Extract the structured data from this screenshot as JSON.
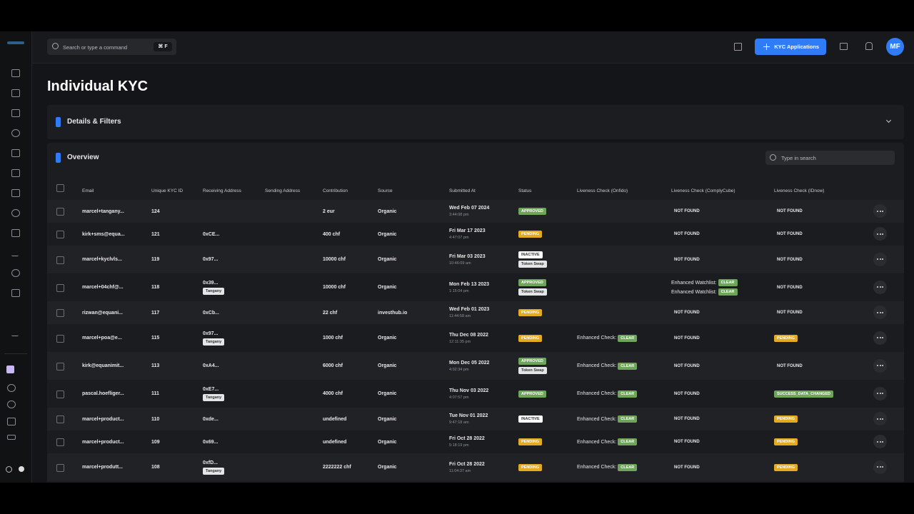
{
  "topbar": {
    "search_placeholder": "Search or type a command",
    "shortcut": "⌘ F",
    "button": "KYC Applications",
    "avatar": "MF"
  },
  "page": {
    "title": "Individual KYC",
    "details_panel": "Details & Filters",
    "overview_panel": "Overview",
    "table_search": "Type in search"
  },
  "table": {
    "headers": [
      "Email",
      "Unique KYC ID",
      "Receiving Address",
      "Sending Address",
      "Contribution",
      "Source",
      "Submitted At",
      "Status",
      "Liveness Check (Onfido)",
      "Liveness Check (ComplyCube)",
      "Liveness Check (IDnow)"
    ],
    "rows": [
      {
        "email": "marcel+tangany...",
        "kyc_id": "124",
        "contribution": "2 eur",
        "source": "Organic",
        "date": "Wed Feb 07 2024",
        "time": "3:44:08 pm",
        "status": [
          {
            "text": "APPROVED",
            "tone": "green"
          }
        ],
        "complycube": [
          {
            "text": "NOT FOUND"
          }
        ],
        "idnow": [
          {
            "text": "NOT FOUND"
          }
        ]
      },
      {
        "email": "kirk+sms@equa...",
        "kyc_id": "121",
        "receiving": "0xCE...",
        "contribution": "400 chf",
        "source": "Organic",
        "date": "Fri Mar 17 2023",
        "time": "4:47:07 pm",
        "status": [
          {
            "text": "PENDING",
            "tone": "yellow"
          }
        ],
        "complycube": [
          {
            "text": "NOT FOUND"
          }
        ],
        "idnow": [
          {
            "text": "NOT FOUND"
          }
        ]
      },
      {
        "email": "marcel+kyclvls...",
        "kyc_id": "119",
        "receiving": "0x97...",
        "contribution": "10000 chf",
        "source": "Organic",
        "date": "Fri Mar 03 2023",
        "time": "10:46:09 am",
        "status": [
          {
            "text": "INACTIVE",
            "tone": "white"
          },
          {
            "text": "Token Swap",
            "tone": "grey"
          }
        ],
        "complycube": [
          {
            "text": "NOT FOUND"
          }
        ],
        "idnow": [
          {
            "text": "NOT FOUND"
          }
        ]
      },
      {
        "email": "marcel+04chf@...",
        "kyc_id": "118",
        "receiving": "0x39...",
        "receiving_tag": "Tangany",
        "contribution": "10000 chf",
        "source": "Organic",
        "date": "Mon Feb 13 2023",
        "time": "1:15:04 pm",
        "status": [
          {
            "text": "APPROVED",
            "tone": "green"
          },
          {
            "text": "Token Swap",
            "tone": "grey"
          }
        ],
        "complycube": [
          {
            "label": "Enhanced Watchlist:",
            "badge": "CLEAR"
          },
          {
            "label": "Enhanced Watchlist:",
            "badge": "CLEAR"
          }
        ],
        "idnow": [
          {
            "text": "NOT FOUND"
          }
        ]
      },
      {
        "email": "rizwan@equani...",
        "kyc_id": "117",
        "receiving": "0xCb...",
        "contribution": "22 chf",
        "source": "investhub.io",
        "date": "Wed Feb 01 2023",
        "time": "11:44:58 am",
        "status": [
          {
            "text": "PENDING",
            "tone": "yellow"
          }
        ],
        "complycube": [
          {
            "text": "NOT FOUND"
          }
        ],
        "idnow": [
          {
            "text": "NOT FOUND"
          }
        ]
      },
      {
        "email": "marcel+poa@e...",
        "kyc_id": "115",
        "receiving": "0x97...",
        "receiving_tag": "Tangany",
        "contribution": "1000 chf",
        "source": "Organic",
        "date": "Thu Dec 08 2022",
        "time": "12:11:35 pm",
        "status": [
          {
            "text": "PENDING",
            "tone": "yellow"
          }
        ],
        "onfido": [
          {
            "label": "Enhanced Check:",
            "badge": "CLEAR"
          }
        ],
        "complycube": [
          {
            "text": "NOT FOUND"
          }
        ],
        "idnow": [
          {
            "badge": "PENDING",
            "tone": "yellow"
          }
        ]
      },
      {
        "email": "kirk@equanimit...",
        "kyc_id": "113",
        "receiving": "0xA4...",
        "contribution": "6000 chf",
        "source": "Organic",
        "date": "Mon Dec 05 2022",
        "time": "4:02:34 pm",
        "status": [
          {
            "text": "APPROVED",
            "tone": "green"
          },
          {
            "text": "Token Swap",
            "tone": "grey"
          }
        ],
        "onfido": [
          {
            "label": "Enhanced Check:",
            "badge": "CLEAR"
          }
        ],
        "complycube": [
          {
            "text": "NOT FOUND"
          }
        ],
        "idnow": [
          {
            "text": "NOT FOUND"
          }
        ]
      },
      {
        "email": "pascal.hoefliger...",
        "kyc_id": "111",
        "receiving": "0xE7...",
        "receiving_tag": "Tangany",
        "contribution": "4000 chf",
        "source": "Organic",
        "date": "Thu Nov 03 2022",
        "time": "4:07:57 pm",
        "status": [
          {
            "text": "APPROVED",
            "tone": "green"
          }
        ],
        "onfido": [
          {
            "label": "Enhanced Check:",
            "badge": "CLEAR"
          }
        ],
        "complycube": [
          {
            "text": "NOT FOUND"
          }
        ],
        "idnow": [
          {
            "badge": "SUCCESS_DATA_CHANGED",
            "tone": "green"
          }
        ]
      },
      {
        "email": "marcel+product...",
        "kyc_id": "110",
        "receiving": "0xde...",
        "contribution": "undefined",
        "source": "Organic",
        "date": "Tue Nov 01 2022",
        "time": "9:47:18 am",
        "status": [
          {
            "text": "INACTIVE",
            "tone": "white"
          }
        ],
        "onfido": [
          {
            "label": "Enhanced Check:",
            "badge": "CLEAR"
          }
        ],
        "complycube": [
          {
            "text": "NOT FOUND"
          }
        ],
        "idnow": [
          {
            "badge": "PENDING",
            "tone": "yellow"
          }
        ]
      },
      {
        "email": "marcel+product...",
        "kyc_id": "109",
        "receiving": "0x69...",
        "contribution": "undefined",
        "source": "Organic",
        "date": "Fri Oct 28 2022",
        "time": "5:18:19 pm",
        "status": [
          {
            "text": "PENDING",
            "tone": "yellow"
          }
        ],
        "onfido": [
          {
            "label": "Enhanced Check:",
            "badge": "CLEAR"
          }
        ],
        "complycube": [
          {
            "text": "NOT FOUND"
          }
        ],
        "idnow": [
          {
            "badge": "PENDING",
            "tone": "yellow"
          }
        ]
      },
      {
        "email": "marcel+produtt...",
        "kyc_id": "108",
        "receiving": "0xfD...",
        "receiving_tag": "Tangany",
        "contribution": "2222222 chf",
        "source": "Organic",
        "date": "Fri Oct 28 2022",
        "time": "11:04:37 am",
        "status": [
          {
            "text": "PENDING",
            "tone": "yellow"
          }
        ],
        "onfido": [
          {
            "label": "Enhanced Check:",
            "badge": "CLEAR"
          }
        ],
        "complycube": [
          {
            "text": "NOT FOUND"
          }
        ],
        "idnow": [
          {
            "badge": "PENDING",
            "tone": "yellow"
          }
        ]
      }
    ]
  }
}
